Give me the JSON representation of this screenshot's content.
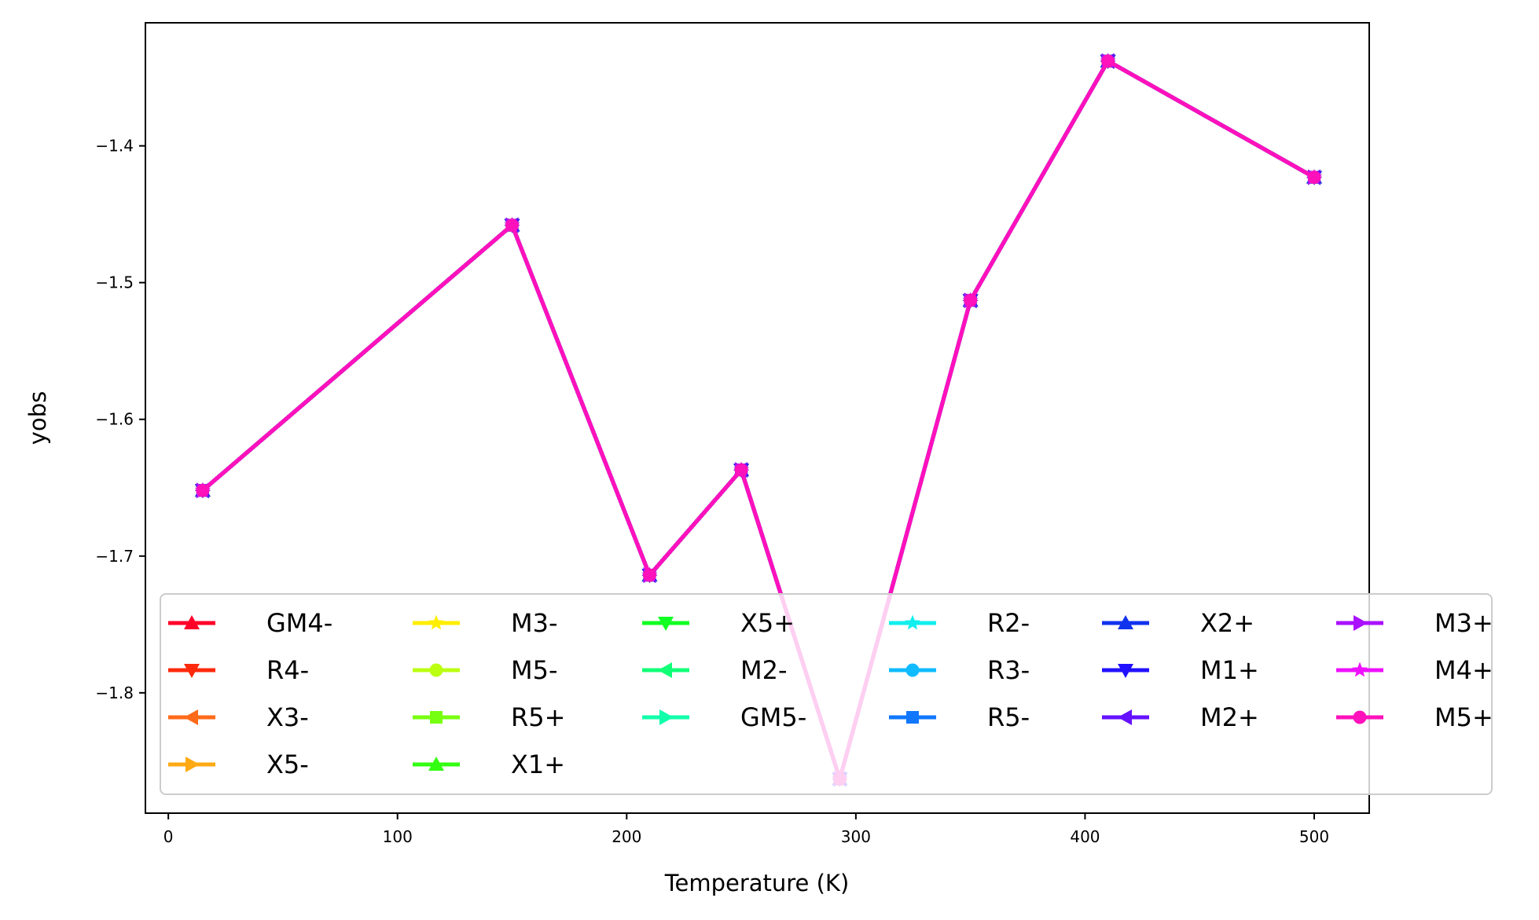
{
  "chart_data": {
    "type": "line",
    "title": "",
    "xlabel": "Temperature (K)",
    "ylabel": "yobs",
    "xlim": [
      -10,
      524
    ],
    "ylim": [
      -1.888,
      -1.31
    ],
    "xticks": [
      0,
      100,
      200,
      300,
      400,
      500
    ],
    "yticks": [
      -1.8,
      -1.7,
      -1.6,
      -1.5,
      -1.4
    ],
    "ytick_labels": [
      "−1.8",
      "−1.7",
      "−1.6",
      "−1.5",
      "−1.4"
    ],
    "grid": false,
    "legend": {
      "placement": "lower right",
      "columns": 6,
      "overlay_opacity": 0.8
    },
    "x": [
      15,
      150,
      210,
      250,
      293,
      350,
      410,
      500
    ],
    "series": [
      {
        "name": "GM4-",
        "color": "#ff0029",
        "marker": "triangle-up",
        "values": [
          -1.652,
          -1.458,
          -1.714,
          -1.637,
          -1.863,
          -1.513,
          -1.338,
          -1.423
        ]
      },
      {
        "name": "R4-",
        "color": "#ff2a0b",
        "marker": "triangle-down",
        "values": [
          -1.652,
          -1.458,
          -1.714,
          -1.637,
          -1.863,
          -1.513,
          -1.338,
          -1.423
        ]
      },
      {
        "name": "X3-",
        "color": "#ff6a1a",
        "marker": "triangle-left",
        "values": [
          -1.652,
          -1.458,
          -1.714,
          -1.637,
          -1.863,
          -1.513,
          -1.338,
          -1.423
        ]
      },
      {
        "name": "X5-",
        "color": "#ffaa14",
        "marker": "triangle-right",
        "values": [
          -1.652,
          -1.458,
          -1.714,
          -1.637,
          -1.863,
          -1.513,
          -1.338,
          -1.423
        ]
      },
      {
        "name": "M3-",
        "color": "#ffee00",
        "marker": "star",
        "values": [
          -1.652,
          -1.458,
          -1.714,
          -1.637,
          -1.863,
          -1.513,
          -1.338,
          -1.423
        ]
      },
      {
        "name": "M5-",
        "color": "#bbff11",
        "marker": "circle",
        "values": [
          -1.652,
          -1.458,
          -1.714,
          -1.637,
          -1.863,
          -1.513,
          -1.338,
          -1.423
        ]
      },
      {
        "name": "R5+",
        "color": "#77ff11",
        "marker": "square",
        "values": [
          -1.652,
          -1.458,
          -1.714,
          -1.637,
          -1.863,
          -1.513,
          -1.338,
          -1.423
        ]
      },
      {
        "name": "X1+",
        "color": "#33ff11",
        "marker": "triangle-up",
        "values": [
          -1.652,
          -1.458,
          -1.714,
          -1.637,
          -1.863,
          -1.513,
          -1.338,
          -1.423
        ]
      },
      {
        "name": "X5+",
        "color": "#11ff22",
        "marker": "triangle-down",
        "values": [
          -1.652,
          -1.458,
          -1.714,
          -1.637,
          -1.863,
          -1.513,
          -1.338,
          -1.423
        ]
      },
      {
        "name": "M2-",
        "color": "#11ff77",
        "marker": "triangle-left",
        "values": [
          -1.652,
          -1.458,
          -1.714,
          -1.637,
          -1.863,
          -1.513,
          -1.338,
          -1.423
        ]
      },
      {
        "name": "GM5-",
        "color": "#11ffaa",
        "marker": "triangle-right",
        "values": [
          -1.652,
          -1.458,
          -1.714,
          -1.637,
          -1.863,
          -1.513,
          -1.338,
          -1.423
        ]
      },
      {
        "name": "R2-",
        "color": "#11eeee",
        "marker": "star",
        "values": [
          -1.652,
          -1.458,
          -1.714,
          -1.637,
          -1.863,
          -1.513,
          -1.338,
          -1.423
        ]
      },
      {
        "name": "R3-",
        "color": "#11bbff",
        "marker": "circle",
        "values": [
          -1.652,
          -1.458,
          -1.714,
          -1.637,
          -1.863,
          -1.513,
          -1.338,
          -1.423
        ]
      },
      {
        "name": "R5-",
        "color": "#1177ff",
        "marker": "square",
        "values": [
          -1.652,
          -1.458,
          -1.714,
          -1.637,
          -1.863,
          -1.513,
          -1.338,
          -1.423
        ]
      },
      {
        "name": "X2+",
        "color": "#1133ee",
        "marker": "triangle-up",
        "values": [
          -1.652,
          -1.458,
          -1.714,
          -1.637,
          -1.863,
          -1.513,
          -1.338,
          -1.423
        ]
      },
      {
        "name": "M1+",
        "color": "#2211ff",
        "marker": "triangle-down",
        "values": [
          -1.652,
          -1.458,
          -1.714,
          -1.637,
          -1.863,
          -1.513,
          -1.338,
          -1.423
        ]
      },
      {
        "name": "M2+",
        "color": "#6611ff",
        "marker": "triangle-left",
        "values": [
          -1.652,
          -1.458,
          -1.714,
          -1.637,
          -1.863,
          -1.513,
          -1.338,
          -1.423
        ]
      },
      {
        "name": "M3+",
        "color": "#aa11ff",
        "marker": "triangle-right",
        "values": [
          -1.652,
          -1.458,
          -1.714,
          -1.637,
          -1.863,
          -1.513,
          -1.338,
          -1.423
        ]
      },
      {
        "name": "M4+",
        "color": "#ee11ff",
        "marker": "star",
        "values": [
          -1.652,
          -1.458,
          -1.714,
          -1.637,
          -1.863,
          -1.513,
          -1.338,
          -1.423
        ]
      },
      {
        "name": "M5+",
        "color": "#ff11bb",
        "marker": "circle",
        "values": [
          -1.652,
          -1.458,
          -1.714,
          -1.637,
          -1.863,
          -1.513,
          -1.338,
          -1.423
        ]
      }
    ]
  }
}
